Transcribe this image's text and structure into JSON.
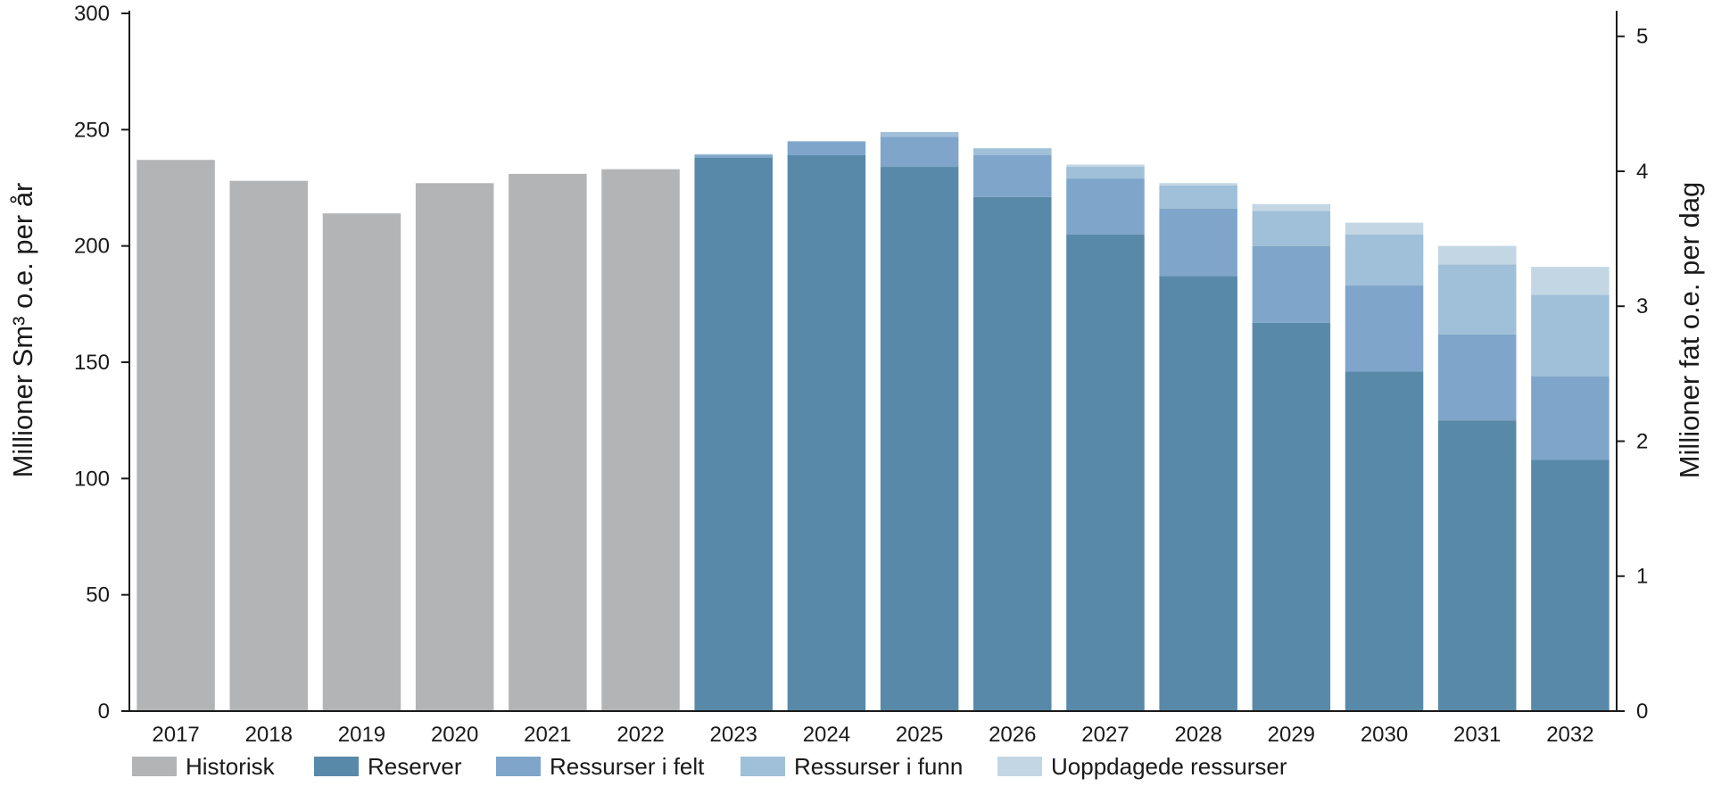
{
  "chart_data": {
    "type": "bar",
    "stacked": true,
    "categories": [
      "2017",
      "2018",
      "2019",
      "2020",
      "2021",
      "2022",
      "2023",
      "2024",
      "2025",
      "2026",
      "2027",
      "2028",
      "2029",
      "2030",
      "2031",
      "2032"
    ],
    "series": [
      {
        "name": "Historisk",
        "color": "#b3b4b6",
        "values": [
          237,
          228,
          214,
          227,
          231,
          233,
          0,
          0,
          0,
          0,
          0,
          0,
          0,
          0,
          0,
          0
        ]
      },
      {
        "name": "Reserver",
        "color": "#5989a8",
        "values": [
          0,
          0,
          0,
          0,
          0,
          0,
          238,
          239,
          234,
          221,
          205,
          187,
          167,
          146,
          125,
          108
        ]
      },
      {
        "name": "Ressurser i felt",
        "color": "#7fa6ca",
        "values": [
          0,
          0,
          0,
          0,
          0,
          0,
          1,
          6,
          13,
          18,
          24,
          29,
          33,
          37,
          37,
          36
        ]
      },
      {
        "name": "Ressurser i funn",
        "color": "#a0bfd8",
        "values": [
          0,
          0,
          0,
          0,
          0,
          0,
          0.5,
          0,
          2,
          3,
          5,
          10,
          15,
          22,
          30,
          35
        ]
      },
      {
        "name": "Uoppdagede ressurser",
        "color": "#c3d6e4",
        "values": [
          0,
          0,
          0,
          0,
          0,
          0,
          0,
          0,
          0,
          0,
          1,
          1,
          3,
          5,
          8,
          12
        ]
      }
    ],
    "ylabel": "Millioner Sm³ o.e. per år",
    "ylim": [
      0,
      300
    ],
    "yticks": [
      "0",
      "50",
      "100",
      "150",
      "200",
      "250",
      "300"
    ],
    "y2label": "Millioner fat o.e. per dag",
    "y2lim": [
      0,
      5.17
    ],
    "y2ticks": [
      "0",
      "1",
      "2",
      "3",
      "4",
      "5"
    ],
    "grid": false,
    "legend_position": "bottom"
  }
}
